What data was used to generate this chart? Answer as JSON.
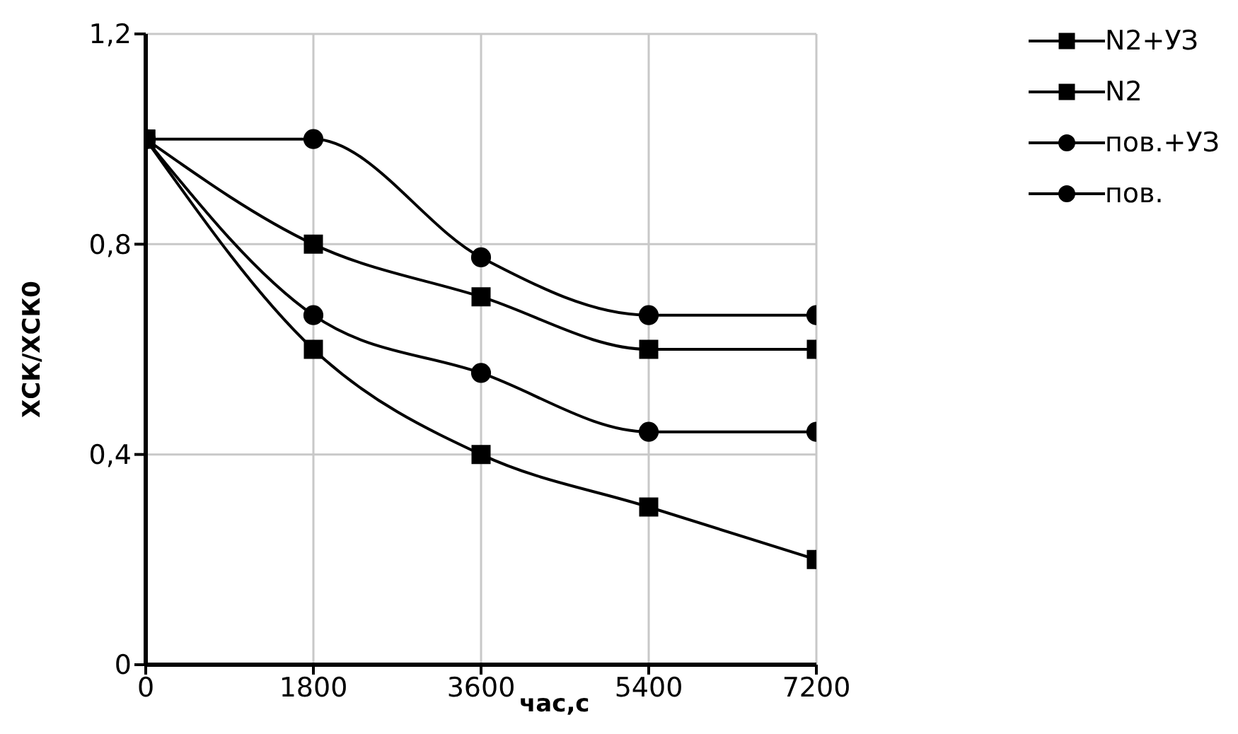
{
  "chart_data": {
    "type": "line",
    "xlabel": "час,с",
    "ylabel": "ХСК/ХСК0",
    "x": [
      0,
      1800,
      3600,
      5400,
      7200
    ],
    "xlim": [
      0,
      7200
    ],
    "xticks": [
      0,
      1800,
      3600,
      5400,
      7200
    ],
    "ylim": [
      0,
      1.2
    ],
    "yticks": [
      0,
      {
        "value": 0.4,
        "label": "0,4"
      },
      {
        "value": 0.8,
        "label": "0,8"
      },
      {
        "value": 1.2,
        "label": "1,2"
      }
    ],
    "grid": true,
    "legend": "right",
    "line_style": "solid",
    "series": [
      {
        "name": "N2+УЗ",
        "color": "#000000",
        "marker": "square",
        "values": [
          1,
          0.6,
          0.4,
          0.3,
          0.2
        ]
      },
      {
        "name": "N2",
        "color": "#000000",
        "marker": "square",
        "values": [
          1,
          0.8,
          0.7,
          0.6,
          0.6
        ]
      },
      {
        "name": "пов.+УЗ",
        "color": "#000000",
        "marker": "circle",
        "values": [
          1,
          0.665,
          0.555,
          0.443,
          0.443
        ]
      },
      {
        "name": "пов.",
        "color": "#000000",
        "marker": "circle",
        "values": [
          1,
          1,
          0.775,
          0.665,
          0.665
        ]
      }
    ]
  }
}
